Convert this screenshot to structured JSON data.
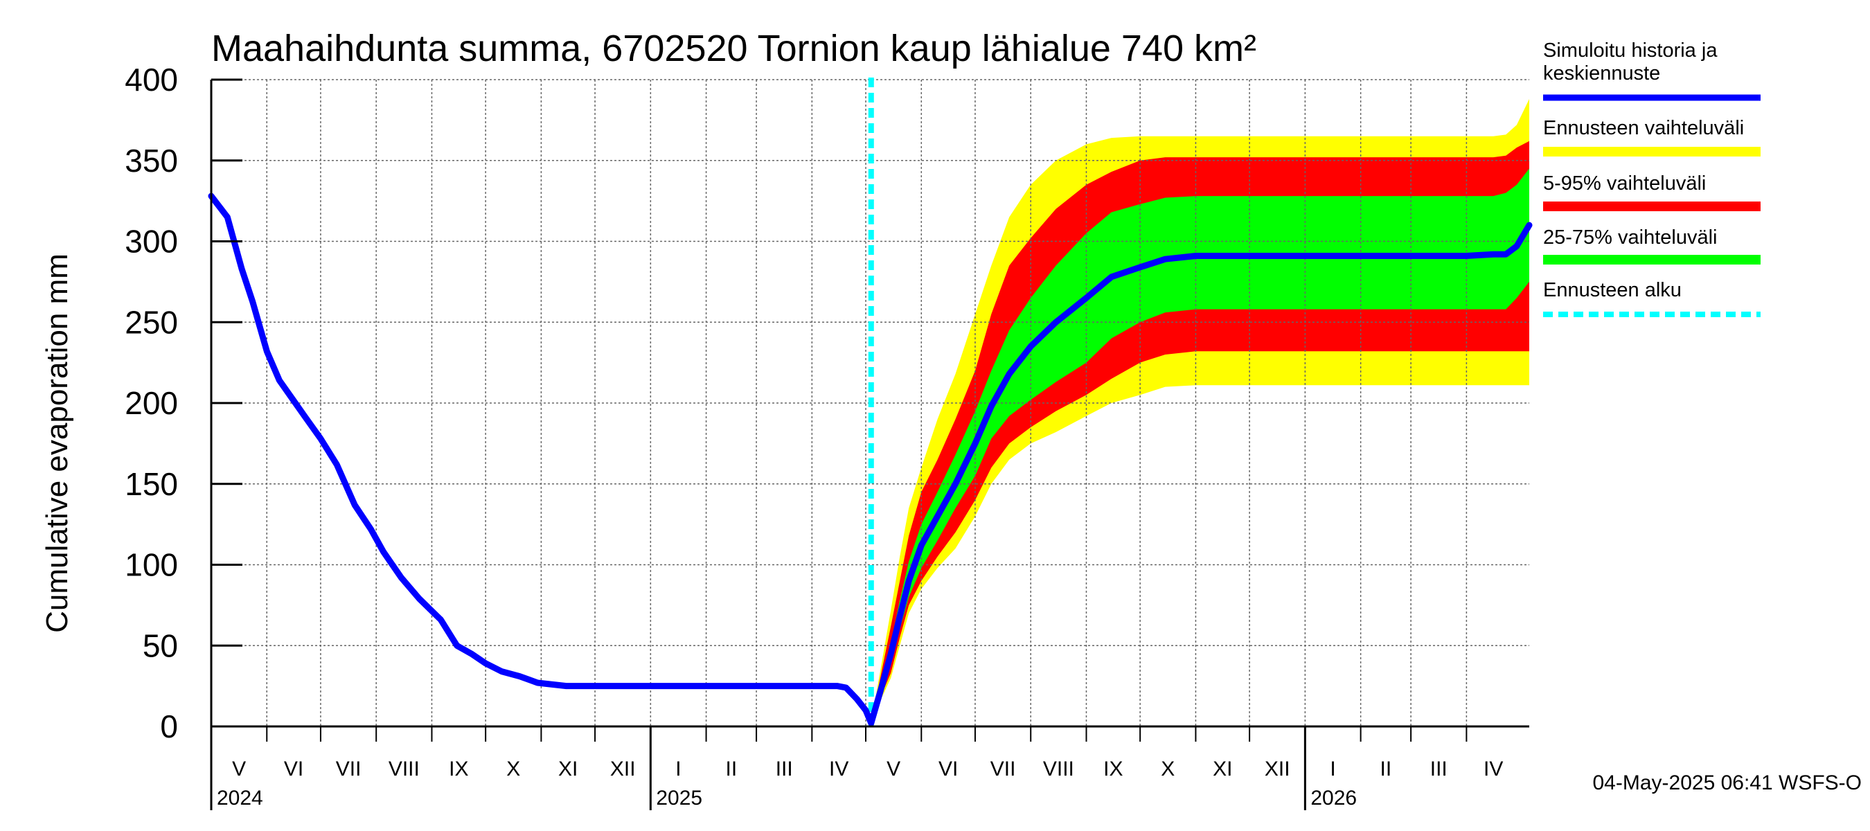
{
  "chart_data": {
    "type": "area",
    "title": "Maahaihdunta summa, 6702520 Tornion kaup lähialue 740 km²",
    "ylabel": "Cumulative evaporation   mm",
    "xlabel": "",
    "ylim": [
      0,
      400
    ],
    "yticks": [
      0,
      50,
      100,
      150,
      200,
      250,
      300,
      350,
      400
    ],
    "xlim": [
      "2024-05-01",
      "2026-05-06"
    ],
    "forecast_start": "2025-05-04",
    "grid": true,
    "legend_position": "right",
    "months": [
      {
        "label": "V",
        "start": "2024-05-01",
        "end": "2024-06-01"
      },
      {
        "label": "VI",
        "start": "2024-06-01",
        "end": "2024-07-01"
      },
      {
        "label": "VII",
        "start": "2024-07-01",
        "end": "2024-08-01"
      },
      {
        "label": "VIII",
        "start": "2024-08-01",
        "end": "2024-09-01"
      },
      {
        "label": "IX",
        "start": "2024-09-01",
        "end": "2024-10-01"
      },
      {
        "label": "X",
        "start": "2024-10-01",
        "end": "2024-11-01"
      },
      {
        "label": "XI",
        "start": "2024-11-01",
        "end": "2024-12-01"
      },
      {
        "label": "XII",
        "start": "2024-12-01",
        "end": "2025-01-01"
      },
      {
        "label": "I",
        "start": "2025-01-01",
        "end": "2025-02-01"
      },
      {
        "label": "II",
        "start": "2025-02-01",
        "end": "2025-03-01"
      },
      {
        "label": "III",
        "start": "2025-03-01",
        "end": "2025-04-01"
      },
      {
        "label": "IV",
        "start": "2025-04-01",
        "end": "2025-05-01"
      },
      {
        "label": "V",
        "start": "2025-05-01",
        "end": "2025-06-01"
      },
      {
        "label": "VI",
        "start": "2025-06-01",
        "end": "2025-07-01"
      },
      {
        "label": "VII",
        "start": "2025-07-01",
        "end": "2025-08-01"
      },
      {
        "label": "VIII",
        "start": "2025-08-01",
        "end": "2025-09-01"
      },
      {
        "label": "IX",
        "start": "2025-09-01",
        "end": "2025-10-01"
      },
      {
        "label": "X",
        "start": "2025-10-01",
        "end": "2025-11-01"
      },
      {
        "label": "XI",
        "start": "2025-11-01",
        "end": "2025-12-01"
      },
      {
        "label": "XII",
        "start": "2025-12-01",
        "end": "2026-01-01"
      },
      {
        "label": "I",
        "start": "2026-01-01",
        "end": "2026-02-01"
      },
      {
        "label": "II",
        "start": "2026-02-01",
        "end": "2026-03-01"
      },
      {
        "label": "III",
        "start": "2026-03-01",
        "end": "2026-04-01"
      },
      {
        "label": "IV",
        "start": "2026-04-01",
        "end": "2026-05-01"
      }
    ],
    "years": [
      {
        "label": "2024",
        "date": "2024-05-01"
      },
      {
        "label": "2025",
        "date": "2025-01-01"
      },
      {
        "label": "2026",
        "date": "2026-01-01"
      }
    ],
    "x": [
      "2024-05-01",
      "2024-05-10",
      "2024-05-18",
      "2024-05-24",
      "2024-06-01",
      "2024-06-08",
      "2024-06-15",
      "2024-06-22",
      "2024-07-01",
      "2024-07-10",
      "2024-07-20",
      "2024-07-29",
      "2024-08-05",
      "2024-08-15",
      "2024-08-25",
      "2024-09-06",
      "2024-09-15",
      "2024-09-23",
      "2024-10-01",
      "2024-10-10",
      "2024-10-20",
      "2024-10-30",
      "2024-11-15",
      "2025-01-01",
      "2025-03-01",
      "2025-04-15",
      "2025-04-20",
      "2025-04-26",
      "2025-05-01",
      "2025-05-04",
      "2025-05-10",
      "2025-05-15",
      "2025-05-20",
      "2025-05-25",
      "2025-06-01",
      "2025-06-10",
      "2025-06-20",
      "2025-07-01",
      "2025-07-10",
      "2025-07-20",
      "2025-08-01",
      "2025-08-15",
      "2025-09-01",
      "2025-09-15",
      "2025-10-01",
      "2025-10-15",
      "2025-11-01",
      "2025-12-01",
      "2026-01-01",
      "2026-02-01",
      "2026-03-01",
      "2026-04-01",
      "2026-04-16",
      "2026-04-23",
      "2026-04-29",
      "2026-05-06"
    ],
    "series": [
      {
        "name": "Simuloitu historia ja keskiennuste",
        "color": "#0000ff",
        "values": [
          328,
          315,
          283,
          263,
          232,
          214,
          203,
          192,
          178,
          162,
          137,
          122,
          108,
          92,
          79,
          66,
          50,
          45,
          39,
          34,
          31,
          27,
          25,
          25,
          25,
          25,
          24,
          17,
          10,
          2,
          25,
          45,
          68,
          90,
          112,
          130,
          150,
          175,
          198,
          218,
          235,
          250,
          265,
          278,
          284,
          289,
          291,
          291,
          291,
          291,
          291,
          291,
          292,
          292,
          297,
          310
        ]
      },
      {
        "name": "25-75% upper",
        "values": [
          null,
          null,
          null,
          null,
          null,
          null,
          null,
          null,
          null,
          null,
          null,
          null,
          null,
          null,
          null,
          null,
          null,
          null,
          null,
          null,
          null,
          null,
          null,
          null,
          null,
          null,
          null,
          null,
          null,
          2,
          30,
          52,
          78,
          102,
          125,
          145,
          168,
          195,
          220,
          245,
          265,
          285,
          305,
          318,
          323,
          327,
          328,
          328,
          328,
          328,
          328,
          328,
          328,
          330,
          335,
          345
        ]
      },
      {
        "name": "25-75% lower",
        "values": [
          null,
          null,
          null,
          null,
          null,
          null,
          null,
          null,
          null,
          null,
          null,
          null,
          null,
          null,
          null,
          null,
          null,
          null,
          null,
          null,
          null,
          null,
          null,
          null,
          null,
          null,
          null,
          null,
          null,
          2,
          22,
          38,
          60,
          80,
          98,
          115,
          135,
          155,
          178,
          192,
          202,
          213,
          225,
          240,
          250,
          256,
          258,
          258,
          258,
          258,
          258,
          258,
          258,
          258,
          265,
          275
        ]
      },
      {
        "name": "5-95% upper",
        "values": [
          null,
          null,
          null,
          null,
          null,
          null,
          null,
          null,
          null,
          null,
          null,
          null,
          null,
          null,
          null,
          null,
          null,
          null,
          null,
          null,
          null,
          null,
          null,
          null,
          null,
          null,
          null,
          null,
          null,
          2,
          35,
          62,
          90,
          118,
          145,
          165,
          190,
          220,
          255,
          285,
          302,
          320,
          335,
          343,
          350,
          352,
          352,
          352,
          352,
          352,
          352,
          352,
          352,
          353,
          358,
          362
        ]
      },
      {
        "name": "5-95% lower",
        "values": [
          null,
          null,
          null,
          null,
          null,
          null,
          null,
          null,
          null,
          null,
          null,
          null,
          null,
          null,
          null,
          null,
          null,
          null,
          null,
          null,
          null,
          null,
          null,
          null,
          null,
          null,
          null,
          null,
          null,
          2,
          20,
          33,
          55,
          75,
          90,
          105,
          120,
          140,
          160,
          175,
          185,
          195,
          205,
          215,
          225,
          230,
          232,
          232,
          232,
          232,
          232,
          232,
          232,
          232,
          232,
          232
        ]
      },
      {
        "name": "Ennusteen vaihteluväli upper",
        "values": [
          null,
          null,
          null,
          null,
          null,
          null,
          null,
          null,
          null,
          null,
          null,
          null,
          null,
          null,
          null,
          null,
          null,
          null,
          null,
          null,
          null,
          null,
          null,
          null,
          null,
          null,
          null,
          null,
          null,
          2,
          40,
          72,
          105,
          135,
          160,
          190,
          218,
          255,
          285,
          315,
          335,
          350,
          360,
          364,
          365,
          365,
          365,
          365,
          365,
          365,
          365,
          365,
          365,
          366,
          372,
          388
        ]
      },
      {
        "name": "Ennusteen vaihteluväli lower",
        "values": [
          null,
          null,
          null,
          null,
          null,
          null,
          null,
          null,
          null,
          null,
          null,
          null,
          null,
          null,
          null,
          null,
          null,
          null,
          null,
          null,
          null,
          null,
          null,
          null,
          null,
          null,
          null,
          null,
          null,
          2,
          18,
          30,
          50,
          70,
          85,
          98,
          110,
          130,
          150,
          165,
          175,
          182,
          192,
          200,
          205,
          210,
          211,
          211,
          211,
          211,
          211,
          211,
          211,
          211,
          211,
          211
        ]
      }
    ],
    "legend": [
      {
        "label": "Simuloitu historia ja keskiennuste",
        "color": "#0000ff",
        "style": "line"
      },
      {
        "label": "Ennusteen vaihteluväli",
        "color": "#ffff00",
        "style": "band"
      },
      {
        "label": "5-95% vaihteluväli",
        "color": "#ff0000",
        "style": "band"
      },
      {
        "label": "25-75% vaihteluväli",
        "color": "#00ff00",
        "style": "band"
      },
      {
        "label": "Ennusteen alku",
        "color": "#00ffff",
        "style": "dashed"
      }
    ],
    "footer": "04-May-2025 06:41 WSFS-O"
  }
}
